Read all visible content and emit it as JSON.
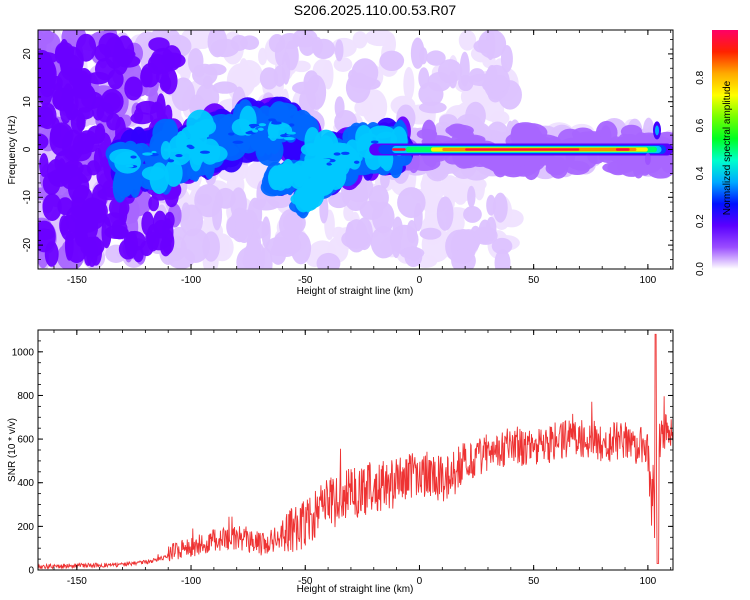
{
  "figure": {
    "title": "S206.2025.110.00.53.R07"
  },
  "chart_data": [
    {
      "type": "heatmap",
      "xlabel": "Height of straight line (km)",
      "ylabel": "Frequency (Hz)",
      "xlim": [
        -167,
        111
      ],
      "ylim": [
        -25,
        25
      ],
      "xticks": [
        -150,
        -100,
        -50,
        0,
        50,
        100
      ],
      "yticks": [
        -20,
        -10,
        0,
        10,
        20
      ],
      "colorbar": {
        "label": "Normalized spectral amplitude",
        "range": [
          0,
          1
        ],
        "ticks": [
          "0.0",
          "0.2",
          "0.4",
          "0.6",
          "0.8"
        ],
        "tick_values": [
          0.0,
          0.2,
          0.4,
          0.6,
          0.8
        ],
        "colors": [
          "#ffffff",
          "#e8d5ff",
          "#9a4dff",
          "#6200ff",
          "#0033ff",
          "#00c8ff",
          "#00ff66",
          "#66ff00",
          "#ffff00",
          "#ff8800",
          "#ff0033",
          "#ff0066"
        ]
      },
      "ridge": {
        "description_points": [
          [
            -125,
            -3
          ],
          [
            -100,
            0
          ],
          [
            -80,
            3
          ],
          [
            -60,
            5
          ],
          [
            -40,
            -3
          ],
          [
            -20,
            0
          ],
          [
            0,
            0
          ],
          [
            20,
            0
          ],
          [
            50,
            0
          ],
          [
            80,
            0
          ],
          [
            100,
            0
          ],
          [
            110,
            0
          ]
        ],
        "peak_range_km": [
          20,
          70
        ]
      }
    },
    {
      "type": "line",
      "xlabel": "Height of straight line (km)",
      "ylabel": "SNR (10 * v/v)",
      "xlim": [
        -167,
        111
      ],
      "ylim": [
        0,
        1100
      ],
      "xticks": [
        -150,
        -100,
        -50,
        0,
        50,
        100
      ],
      "yticks": [
        0,
        200,
        400,
        600,
        800,
        1000
      ],
      "series": [
        {
          "color": "#ee3333",
          "x": [
            -167,
            -150,
            -130,
            -120,
            -110,
            -100,
            -90,
            -80,
            -70,
            -60,
            -50,
            -40,
            -30,
            -20,
            -10,
            0,
            10,
            20,
            30,
            40,
            50,
            60,
            70,
            80,
            90,
            100,
            103,
            105,
            111
          ],
          "y": [
            15,
            20,
            25,
            35,
            60,
            100,
            130,
            150,
            120,
            150,
            220,
            300,
            350,
            380,
            400,
            450,
            420,
            480,
            540,
            570,
            560,
            590,
            610,
            580,
            600,
            550,
            50,
            600,
            650
          ]
        }
      ]
    }
  ]
}
